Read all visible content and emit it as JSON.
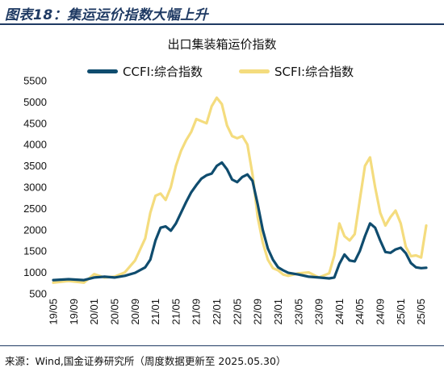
{
  "figure": {
    "title": "图表18：集运运价指数大幅上升",
    "source": "来源：Wind,国金证券研究所（周度数据更新至 2025.05.30）",
    "colors": {
      "accent": "#1f3a63",
      "ccfi": "#0f4c6e",
      "scfi": "#f4dc7e"
    }
  },
  "chart_data": {
    "type": "line",
    "title": "出口集装箱运价指数",
    "xlabel": "",
    "ylabel": "",
    "ylim": [
      500,
      5500
    ],
    "yticks": [
      500,
      1000,
      1500,
      2000,
      2500,
      3000,
      3500,
      4000,
      4500,
      5000,
      5500
    ],
    "xlim": [
      "2019-05",
      "2025-06"
    ],
    "xticks": [
      "19/05",
      "19/09",
      "20/01",
      "20/05",
      "20/09",
      "21/01",
      "21/05",
      "21/09",
      "22/01",
      "22/05",
      "22/09",
      "23/01",
      "23/05",
      "23/09",
      "24/01",
      "24/05",
      "24/09",
      "25/01",
      "25/05"
    ],
    "legend": "top",
    "grid": false,
    "series": [
      {
        "name": "CCFI:综合指数",
        "color": "#0f4c6e",
        "points": [
          [
            "2019-05",
            820
          ],
          [
            "2019-08",
            840
          ],
          [
            "2019-11",
            820
          ],
          [
            "2020-01",
            880
          ],
          [
            "2020-03",
            900
          ],
          [
            "2020-05",
            880
          ],
          [
            "2020-07",
            920
          ],
          [
            "2020-09",
            990
          ],
          [
            "2020-11",
            1120
          ],
          [
            "2020-12",
            1300
          ],
          [
            "2021-01",
            1750
          ],
          [
            "2021-02",
            2050
          ],
          [
            "2021-03",
            2080
          ],
          [
            "2021-04",
            1980
          ],
          [
            "2021-05",
            2150
          ],
          [
            "2021-06",
            2400
          ],
          [
            "2021-07",
            2650
          ],
          [
            "2021-08",
            2880
          ],
          [
            "2021-09",
            3050
          ],
          [
            "2021-10",
            3200
          ],
          [
            "2021-11",
            3280
          ],
          [
            "2021-12",
            3320
          ],
          [
            "2022-01",
            3500
          ],
          [
            "2022-02",
            3580
          ],
          [
            "2022-03",
            3420
          ],
          [
            "2022-04",
            3180
          ],
          [
            "2022-05",
            3120
          ],
          [
            "2022-06",
            3240
          ],
          [
            "2022-07",
            3300
          ],
          [
            "2022-08",
            3150
          ],
          [
            "2022-09",
            2600
          ],
          [
            "2022-10",
            2000
          ],
          [
            "2022-11",
            1560
          ],
          [
            "2022-12",
            1300
          ],
          [
            "2023-01",
            1120
          ],
          [
            "2023-02",
            1050
          ],
          [
            "2023-03",
            990
          ],
          [
            "2023-05",
            950
          ],
          [
            "2023-07",
            900
          ],
          [
            "2023-09",
            880
          ],
          [
            "2023-11",
            860
          ],
          [
            "2023-12",
            880
          ],
          [
            "2024-01",
            1200
          ],
          [
            "2024-02",
            1420
          ],
          [
            "2024-03",
            1280
          ],
          [
            "2024-04",
            1260
          ],
          [
            "2024-05",
            1500
          ],
          [
            "2024-06",
            1850
          ],
          [
            "2024-07",
            2150
          ],
          [
            "2024-08",
            2050
          ],
          [
            "2024-09",
            1750
          ],
          [
            "2024-10",
            1480
          ],
          [
            "2024-11",
            1460
          ],
          [
            "2024-12",
            1540
          ],
          [
            "2025-01",
            1580
          ],
          [
            "2025-02",
            1450
          ],
          [
            "2025-03",
            1220
          ],
          [
            "2025-04",
            1120
          ],
          [
            "2025-05",
            1100
          ],
          [
            "2025-06",
            1110
          ]
        ]
      },
      {
        "name": "SCFI:综合指数",
        "color": "#f4dc7e",
        "points": [
          [
            "2019-05",
            760
          ],
          [
            "2019-08",
            800
          ],
          [
            "2019-11",
            760
          ],
          [
            "2020-01",
            960
          ],
          [
            "2020-03",
            880
          ],
          [
            "2020-05",
            900
          ],
          [
            "2020-07",
            1000
          ],
          [
            "2020-09",
            1280
          ],
          [
            "2020-11",
            1800
          ],
          [
            "2020-12",
            2400
          ],
          [
            "2021-01",
            2800
          ],
          [
            "2021-02",
            2850
          ],
          [
            "2021-03",
            2700
          ],
          [
            "2021-04",
            3000
          ],
          [
            "2021-05",
            3500
          ],
          [
            "2021-06",
            3850
          ],
          [
            "2021-07",
            4100
          ],
          [
            "2021-08",
            4300
          ],
          [
            "2021-09",
            4600
          ],
          [
            "2021-10",
            4550
          ],
          [
            "2021-11",
            4500
          ],
          [
            "2021-12",
            4900
          ],
          [
            "2022-01",
            5100
          ],
          [
            "2022-02",
            4950
          ],
          [
            "2022-03",
            4450
          ],
          [
            "2022-04",
            4200
          ],
          [
            "2022-05",
            4150
          ],
          [
            "2022-06",
            4200
          ],
          [
            "2022-07",
            4000
          ],
          [
            "2022-08",
            3300
          ],
          [
            "2022-09",
            2300
          ],
          [
            "2022-10",
            1700
          ],
          [
            "2022-11",
            1300
          ],
          [
            "2022-12",
            1100
          ],
          [
            "2023-01",
            1050
          ],
          [
            "2023-02",
            950
          ],
          [
            "2023-03",
            920
          ],
          [
            "2023-05",
            980
          ],
          [
            "2023-07",
            1000
          ],
          [
            "2023-09",
            880
          ],
          [
            "2023-11",
            980
          ],
          [
            "2023-12",
            1400
          ],
          [
            "2024-01",
            2150
          ],
          [
            "2024-02",
            1850
          ],
          [
            "2024-03",
            1750
          ],
          [
            "2024-04",
            1900
          ],
          [
            "2024-05",
            2700
          ],
          [
            "2024-06",
            3500
          ],
          [
            "2024-07",
            3700
          ],
          [
            "2024-08",
            3000
          ],
          [
            "2024-09",
            2400
          ],
          [
            "2024-10",
            2100
          ],
          [
            "2024-11",
            2300
          ],
          [
            "2024-12",
            2450
          ],
          [
            "2025-01",
            2150
          ],
          [
            "2025-02",
            1600
          ],
          [
            "2025-03",
            1380
          ],
          [
            "2025-04",
            1400
          ],
          [
            "2025-05",
            1350
          ],
          [
            "2025-06",
            2100
          ]
        ]
      }
    ]
  }
}
